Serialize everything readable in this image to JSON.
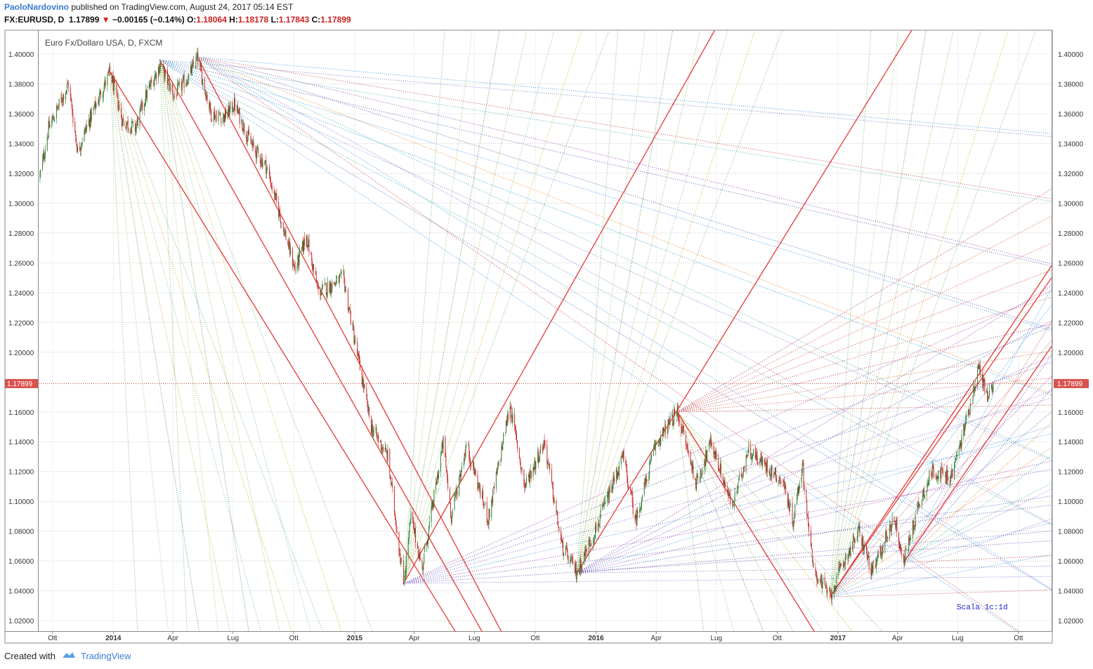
{
  "header": {
    "username": "PaoloNardovino",
    "published": " published on TradingView.com, August 24, 2017 05:14 EST",
    "symbol": "FX:EURUSD, D",
    "last": "1.17899",
    "change": "−0.00165 (−0.14%)",
    "o_label": "O:",
    "o": "1.18064",
    "h_label": "H:",
    "h": "1.18178",
    "l_label": "L:",
    "l": "1.17843",
    "c_label": "C:",
    "c": "1.17899",
    "down_icon": "triangle-down-icon"
  },
  "footer": {
    "created_with": "Created with",
    "brand": "TradingView",
    "logo_icon": "tradingview-cloud-icon"
  },
  "colors": {
    "up": "#2e7d32",
    "down": "#c62828",
    "price_line": "#c0392b",
    "trend": "#e53935",
    "axis": "#555555"
  },
  "chart_data": {
    "type": "candlestick",
    "title": "Euro Fx/Dollaro USA, D, FXCM",
    "annotation": "Scala 1c:1d",
    "current_price": 1.17899,
    "current_price_label": "1.17899",
    "ylim": [
      1.013,
      1.416
    ],
    "yticks": [
      "1.40000",
      "1.38000",
      "1.36000",
      "1.34000",
      "1.32000",
      "1.30000",
      "1.28000",
      "1.26000",
      "1.24000",
      "1.22000",
      "1.20000",
      "1.16000",
      "1.14000",
      "1.12000",
      "1.10000",
      "1.08000",
      "1.06000",
      "1.04000",
      "1.02000"
    ],
    "ytick_values": [
      1.4,
      1.38,
      1.36,
      1.34,
      1.32,
      1.3,
      1.28,
      1.26,
      1.24,
      1.22,
      1.2,
      1.16,
      1.14,
      1.12,
      1.1,
      1.08,
      1.06,
      1.04,
      1.02
    ],
    "x_range": [
      "2013-09-10",
      "2017-11-20"
    ],
    "xticks": [
      {
        "label": "Ott",
        "date": "2013-10-01"
      },
      {
        "label": "2014",
        "date": "2014-01-01"
      },
      {
        "label": "Apr",
        "date": "2014-04-01"
      },
      {
        "label": "Lug",
        "date": "2014-07-01"
      },
      {
        "label": "Ott",
        "date": "2014-10-01"
      },
      {
        "label": "2015",
        "date": "2015-01-01"
      },
      {
        "label": "Apr",
        "date": "2015-04-01"
      },
      {
        "label": "Lug",
        "date": "2015-07-01"
      },
      {
        "label": "Ott",
        "date": "2015-10-01"
      },
      {
        "label": "2016",
        "date": "2016-01-01"
      },
      {
        "label": "Apr",
        "date": "2016-04-01"
      },
      {
        "label": "Lug",
        "date": "2016-07-01"
      },
      {
        "label": "Ott",
        "date": "2016-10-01"
      },
      {
        "label": "2017",
        "date": "2017-01-01"
      },
      {
        "label": "Apr",
        "date": "2017-04-01"
      },
      {
        "label": "Lug",
        "date": "2017-07-01"
      },
      {
        "label": "Ott",
        "date": "2017-10-01"
      }
    ],
    "price_path": [
      [
        "2013-09-12",
        1.318
      ],
      [
        "2013-09-25",
        1.35
      ],
      [
        "2013-10-25",
        1.38
      ],
      [
        "2013-11-08",
        1.335
      ],
      [
        "2013-11-25",
        1.355
      ],
      [
        "2013-12-27",
        1.388
      ],
      [
        "2014-01-15",
        1.355
      ],
      [
        "2014-02-03",
        1.35
      ],
      [
        "2014-02-20",
        1.373
      ],
      [
        "2014-03-13",
        1.393
      ],
      [
        "2014-04-03",
        1.372
      ],
      [
        "2014-04-25",
        1.385
      ],
      [
        "2014-05-08",
        1.397
      ],
      [
        "2014-05-29",
        1.36
      ],
      [
        "2014-06-18",
        1.358
      ],
      [
        "2014-07-03",
        1.366
      ],
      [
        "2014-07-30",
        1.338
      ],
      [
        "2014-08-20",
        1.325
      ],
      [
        "2014-09-08",
        1.295
      ],
      [
        "2014-10-03",
        1.255
      ],
      [
        "2014-10-20",
        1.278
      ],
      [
        "2014-11-07",
        1.24
      ],
      [
        "2014-12-15",
        1.25
      ],
      [
        "2014-12-31",
        1.21
      ],
      [
        "2015-01-26",
        1.15
      ],
      [
        "2015-02-20",
        1.13
      ],
      [
        "2015-03-16",
        1.045
      ],
      [
        "2015-03-27",
        1.09
      ],
      [
        "2015-04-13",
        1.055
      ],
      [
        "2015-05-15",
        1.14
      ],
      [
        "2015-05-27",
        1.09
      ],
      [
        "2015-06-19",
        1.138
      ],
      [
        "2015-07-22",
        1.088
      ],
      [
        "2015-08-24",
        1.165
      ],
      [
        "2015-09-15",
        1.11
      ],
      [
        "2015-10-15",
        1.14
      ],
      [
        "2015-11-10",
        1.07
      ],
      [
        "2015-12-03",
        1.052
      ],
      [
        "2016-01-04",
        1.085
      ],
      [
        "2016-02-11",
        1.13
      ],
      [
        "2016-03-01",
        1.087
      ],
      [
        "2016-03-31",
        1.138
      ],
      [
        "2016-05-03",
        1.16
      ],
      [
        "2016-06-01",
        1.112
      ],
      [
        "2016-06-23",
        1.14
      ],
      [
        "2016-07-25",
        1.096
      ],
      [
        "2016-08-18",
        1.135
      ],
      [
        "2016-10-10",
        1.113
      ],
      [
        "2016-10-25",
        1.087
      ],
      [
        "2016-11-08",
        1.125
      ],
      [
        "2016-11-24",
        1.055
      ],
      [
        "2016-12-20",
        1.036
      ],
      [
        "2017-01-10",
        1.06
      ],
      [
        "2017-02-02",
        1.08
      ],
      [
        "2017-02-22",
        1.052
      ],
      [
        "2017-03-27",
        1.09
      ],
      [
        "2017-04-10",
        1.059
      ],
      [
        "2017-05-03",
        1.098
      ],
      [
        "2017-05-24",
        1.121
      ],
      [
        "2017-06-20",
        1.115
      ],
      [
        "2017-07-06",
        1.14
      ],
      [
        "2017-08-02",
        1.19
      ],
      [
        "2017-08-15",
        1.17
      ],
      [
        "2017-08-24",
        1.179
      ]
    ],
    "drawings": [
      {
        "type": "trend",
        "p1": [
          "2013-12-27",
          1.388
        ],
        "p2": [
          "2015-06-06",
          1.01
        ]
      },
      {
        "type": "trend",
        "p1": [
          "2014-03-12",
          1.396
        ],
        "p2": [
          "2015-07-16",
          1.01
        ]
      },
      {
        "type": "trend",
        "p1": [
          "2014-05-08",
          1.398
        ],
        "p2": [
          "2015-08-14",
          1.01
        ]
      },
      {
        "type": "trend",
        "p1": [
          "2015-03-16",
          1.045
        ],
        "p2": [
          "2016-07-29",
          1.44
        ]
      },
      {
        "type": "trend",
        "p1": [
          "2015-12-03",
          1.052
        ],
        "p2": [
          "2017-05-26",
          1.44
        ]
      },
      {
        "type": "trend",
        "p1": [
          "2016-05-03",
          1.16
        ],
        "p2": [
          "2016-11-30",
          1.01
        ]
      },
      {
        "type": "trend",
        "p1": [
          "2016-12-20",
          1.036
        ],
        "p2": [
          "2017-11-20",
          1.258
        ]
      },
      {
        "type": "trend",
        "p1": [
          "2016-12-20",
          1.036
        ],
        "p2": [
          "2017-11-20",
          1.25
        ]
      },
      {
        "type": "trend",
        "p1": [
          "2017-04-10",
          1.059
        ],
        "p2": [
          "2017-11-20",
          1.204
        ]
      }
    ],
    "fans": [
      {
        "origin": [
          "2013-12-27",
          1.388
        ],
        "dir": "down",
        "color": "green"
      },
      {
        "origin": [
          "2014-03-12",
          1.396
        ],
        "dir": "down",
        "color": "green"
      },
      {
        "origin": [
          "2014-05-08",
          1.398
        ],
        "dir": "right",
        "color": "mixed"
      },
      {
        "origin": [
          "2014-03-12",
          1.396
        ],
        "dir": "right",
        "color": "blue"
      },
      {
        "origin": [
          "2015-03-16",
          1.045
        ],
        "dir": "up",
        "color": "green"
      },
      {
        "origin": [
          "2015-03-16",
          1.045
        ],
        "dir": "right",
        "color": "purple"
      },
      {
        "origin": [
          "2015-12-03",
          1.052
        ],
        "dir": "up",
        "color": "green"
      },
      {
        "origin": [
          "2015-12-03",
          1.052
        ],
        "dir": "right",
        "color": "purple"
      },
      {
        "origin": [
          "2016-05-03",
          1.16
        ],
        "dir": "right",
        "color": "red"
      },
      {
        "origin": [
          "2016-05-03",
          1.16
        ],
        "dir": "down",
        "color": "green"
      },
      {
        "origin": [
          "2016-12-20",
          1.036
        ],
        "dir": "up",
        "color": "green"
      },
      {
        "origin": [
          "2016-12-20",
          1.036
        ],
        "dir": "right",
        "color": "mixed"
      },
      {
        "origin": [
          "2017-04-10",
          1.059
        ],
        "dir": "right",
        "color": "mixed"
      }
    ]
  }
}
